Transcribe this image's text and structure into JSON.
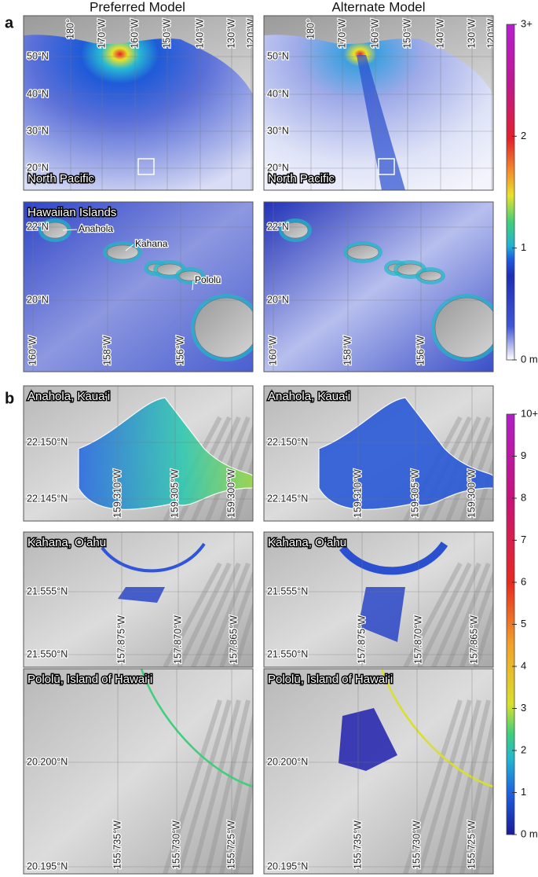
{
  "column_titles": [
    "Preferred Model",
    "Alternate Model"
  ],
  "panel_a": {
    "label": "a",
    "colorbar": {
      "lim": [
        0,
        3
      ],
      "ticks": [
        {
          "value": 0,
          "label": "0 m"
        },
        1,
        2,
        {
          "value": 3,
          "label": "3+"
        }
      ]
    },
    "north_pacific": {
      "title": "North Pacific",
      "lon_labels": [
        "180°",
        "170°W",
        "160°W",
        "150°W",
        "140°W",
        "130°W",
        "120°W"
      ],
      "lat_labels": [
        "50°N",
        "40°N",
        "30°N",
        "20°N"
      ]
    },
    "hawaiian_islands": {
      "title": "Hawaiian Islands",
      "lon_labels": [
        "160°W",
        "158°W",
        "156°W"
      ],
      "lat_labels": [
        "22°N",
        "20°N"
      ],
      "places": [
        "Anahola",
        "Kahana",
        "Pololū"
      ]
    }
  },
  "panel_b": {
    "label": "b",
    "colorbar": {
      "lim": [
        0,
        10
      ],
      "ticks": [
        {
          "value": 0,
          "label": "0 m"
        },
        1,
        2,
        3,
        4,
        5,
        6,
        7,
        8,
        9,
        {
          "value": 10,
          "label": "10+"
        }
      ]
    },
    "sites": [
      {
        "title": "Anahola, Kaua‘i",
        "lat_labels": [
          "22.150°N",
          "22.145°N"
        ],
        "lon_labels": [
          "159.310°W",
          "159.305°W",
          "159.300°W"
        ]
      },
      {
        "title": "Kahana, O‘ahu",
        "lat_labels": [
          "21.555°N",
          "21.550°N"
        ],
        "lon_labels": [
          "157.875°W",
          "157.870°W",
          "157.865°W"
        ]
      },
      {
        "title": "Pololū, Island of Hawai‘i",
        "lat_labels": [
          "20.200°N",
          "20.195°N"
        ],
        "lon_labels": [
          "155.735°W",
          "155.730°W",
          "155.725°W"
        ]
      }
    ]
  }
}
